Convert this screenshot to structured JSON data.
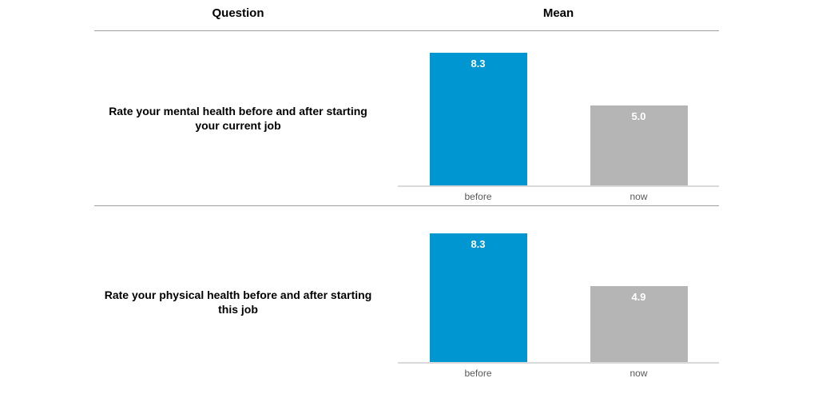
{
  "header": {
    "question_label": "Question",
    "mean_label": "Mean"
  },
  "colors": {
    "before_bar": "#0096d2",
    "now_bar": "#b5b5b5",
    "bar_label": "#ffffff",
    "axis_line": "#d9d9d9",
    "row_separator": "#9e9e9e",
    "tick_label": "#595959"
  },
  "chart_data": [
    {
      "type": "bar",
      "question": "Rate your mental health before and after starting your current job",
      "categories": [
        "before",
        "now"
      ],
      "values": [
        8.3,
        5.0
      ],
      "value_labels": [
        "8.3",
        "5.0"
      ],
      "ylim": [
        0,
        8.3
      ],
      "grid": false,
      "legend": "none"
    },
    {
      "type": "bar",
      "question": "Rate your physical health before and after starting this job",
      "categories": [
        "before",
        "now"
      ],
      "values": [
        8.3,
        4.9
      ],
      "value_labels": [
        "8.3",
        "4.9"
      ],
      "ylim": [
        0,
        8.3
      ],
      "grid": false,
      "legend": "none"
    }
  ]
}
